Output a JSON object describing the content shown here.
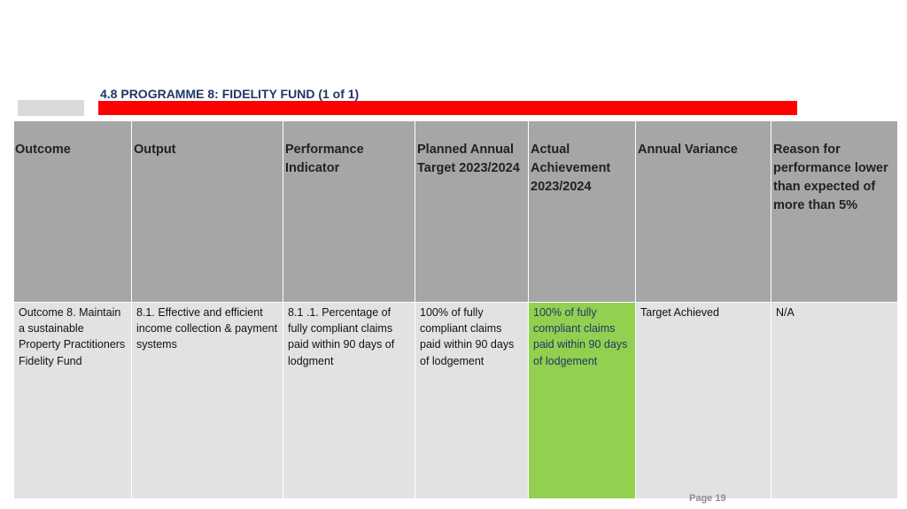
{
  "title": "4.8 PROGRAMME 8: FIDELITY FUND (1 of 1)",
  "colors": {
    "header_bg": "#a6a6a6",
    "cell_bg": "#e2e2e2",
    "highlight": "#92d050",
    "accent_bar": "#ff0000",
    "title": "#1f3864"
  },
  "table": {
    "headers": [
      "Outcome",
      "Output",
      "Performance Indicator",
      "Planned Annual Target 2023/2024",
      "Actual Achievement 2023/2024",
      "Annual Variance",
      "Reason for performance lower than expected of more than 5%"
    ],
    "rows": [
      [
        "Outcome 8. Maintain a sustainable Property Practitioners Fidelity Fund",
        "8.1. Effective and efficient income collection & payment systems",
        "8.1 .1. Percentage of fully compliant claims paid within 90 days of lodgment",
        "100% of fully compliant claims paid within 90 days of lodgement",
        "100% of fully compliant claims paid within 90 days of lodgement",
        "Target Achieved",
        "N/A"
      ]
    ]
  },
  "footer": {
    "page": "Page 19"
  }
}
